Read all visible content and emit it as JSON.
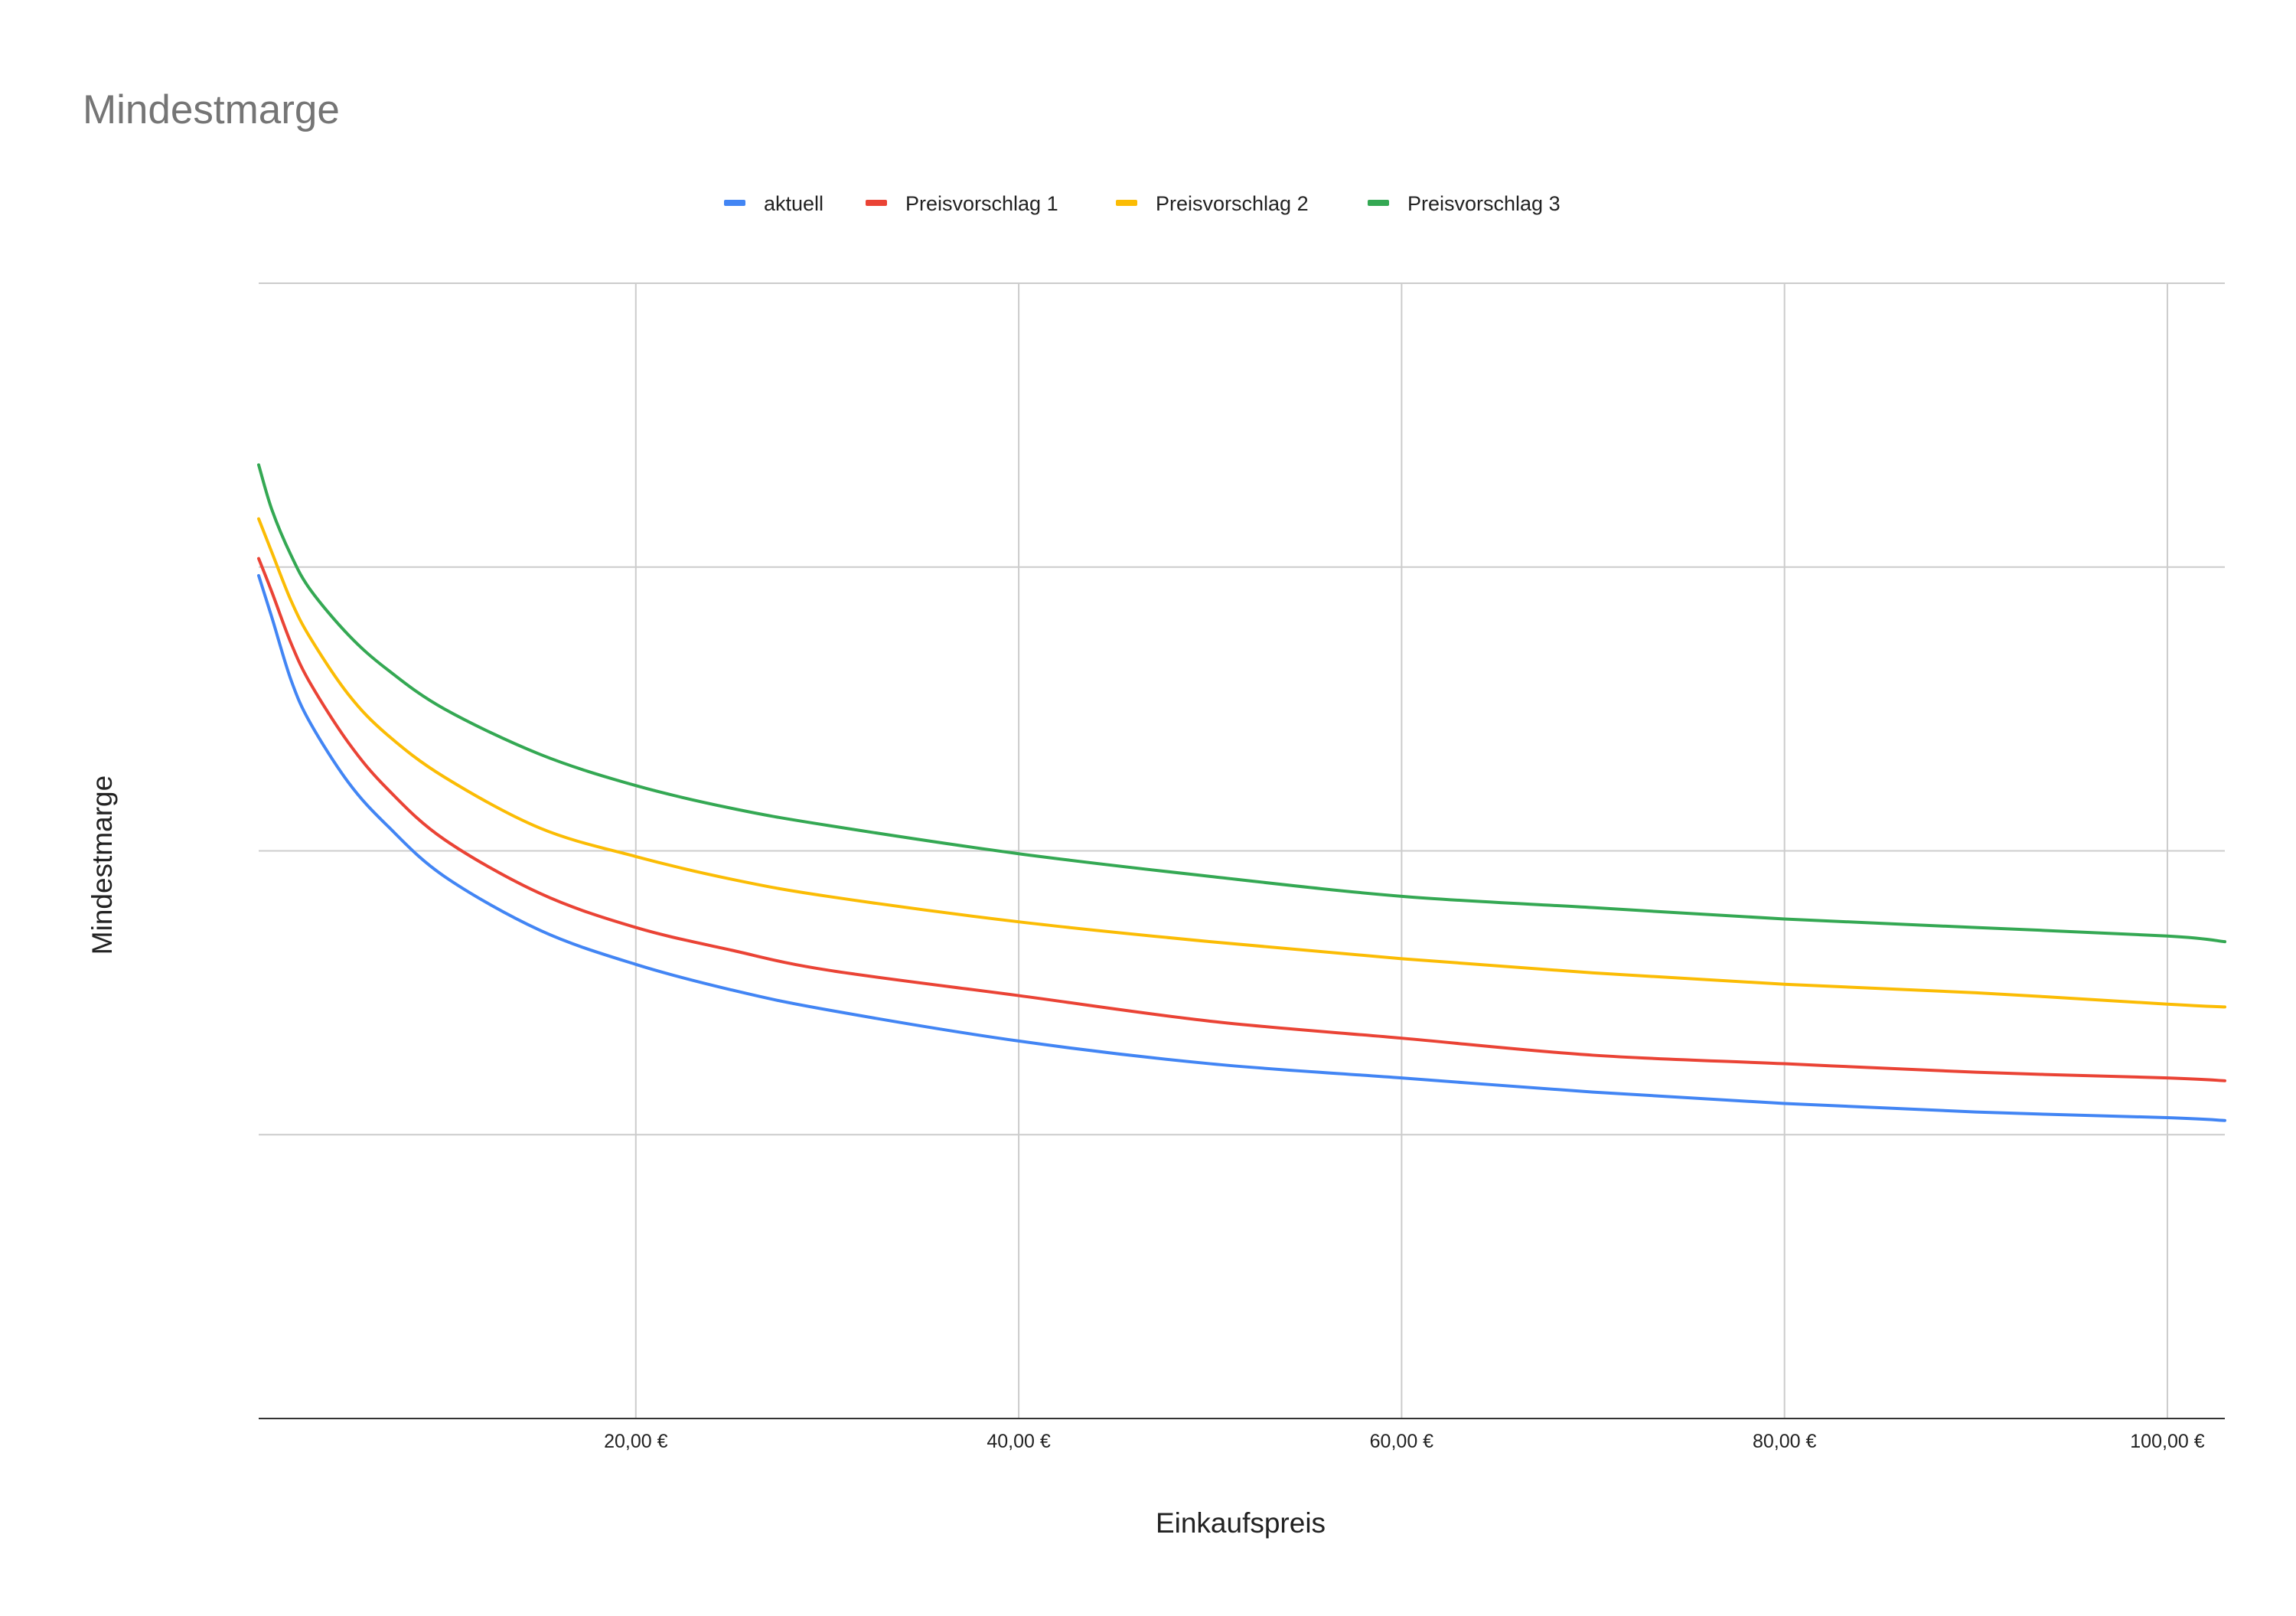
{
  "chart_data": {
    "type": "line",
    "title": "Mindestmarge",
    "xlabel": "Einkaufspreis",
    "ylabel": "Mindestmarge",
    "x_ticks": [
      "20,00 €",
      "40,00 €",
      "60,00 €",
      "80,00 €",
      "100,00 €"
    ],
    "x_tick_values": [
      20,
      40,
      60,
      80,
      100
    ],
    "xlim": [
      0.3,
      103
    ],
    "ylim": [
      0,
      4
    ],
    "y_gridlines": [
      0,
      1,
      2,
      3,
      4
    ],
    "y_tick_labels_visible": false,
    "grid": true,
    "legend_position": "top",
    "x": [
      0.3,
      1,
      2,
      3,
      5,
      7,
      10,
      15,
      20,
      25,
      30,
      40,
      50,
      60,
      70,
      80,
      90,
      100,
      103
    ],
    "series": [
      {
        "name": "aktuell",
        "color": "#4285F4",
        "values": [
          2.97,
          2.82,
          2.6,
          2.45,
          2.24,
          2.09,
          1.91,
          1.72,
          1.6,
          1.51,
          1.44,
          1.33,
          1.25,
          1.2,
          1.15,
          1.11,
          1.08,
          1.06,
          1.05
        ]
      },
      {
        "name": "Preisvorschlag 1",
        "color": "#EA4335",
        "values": [
          3.03,
          2.91,
          2.73,
          2.59,
          2.38,
          2.22,
          2.04,
          1.85,
          1.73,
          1.65,
          1.58,
          1.49,
          1.4,
          1.34,
          1.28,
          1.25,
          1.22,
          1.2,
          1.19
        ]
      },
      {
        "name": "Preisvorschlag 2",
        "color": "#FBBC04",
        "values": [
          3.17,
          3.05,
          2.88,
          2.75,
          2.55,
          2.41,
          2.26,
          2.08,
          1.98,
          1.9,
          1.84,
          1.75,
          1.68,
          1.62,
          1.57,
          1.53,
          1.5,
          1.46,
          1.45
        ]
      },
      {
        "name": "Preisvorschlag 3",
        "color": "#34A853",
        "values": [
          3.36,
          3.2,
          3.04,
          2.92,
          2.76,
          2.64,
          2.5,
          2.34,
          2.23,
          2.15,
          2.09,
          1.99,
          1.91,
          1.84,
          1.8,
          1.76,
          1.73,
          1.7,
          1.68
        ]
      }
    ]
  }
}
